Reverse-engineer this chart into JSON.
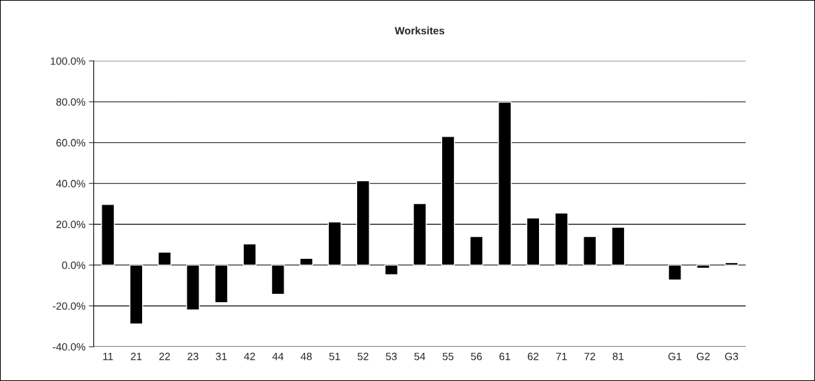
{
  "chart_data": {
    "type": "bar",
    "title": "Worksites",
    "categories": [
      "11",
      "21",
      "22",
      "23",
      "31",
      "42",
      "44",
      "48",
      "51",
      "52",
      "53",
      "54",
      "55",
      "56",
      "61",
      "62",
      "71",
      "72",
      "81",
      null,
      "G1",
      "G2",
      "G3"
    ],
    "values": [
      29.7,
      -28.9,
      6.3,
      -22.0,
      -18.4,
      10.4,
      -14.3,
      3.3,
      21.1,
      41.3,
      -4.7,
      30.1,
      63.0,
      14.0,
      79.8,
      23.1,
      25.5,
      14.0,
      18.5,
      null,
      -7.3,
      -1.5,
      1.2
    ],
    "color": "#000000",
    "ylim": [
      -40,
      100
    ],
    "yticks": [
      {
        "value": -40,
        "label": "-40.0%"
      },
      {
        "value": -20,
        "label": "-20.0%"
      },
      {
        "value": 0,
        "label": "0.0%"
      },
      {
        "value": 20,
        "label": "20.0%"
      },
      {
        "value": 40,
        "label": "40.0%"
      },
      {
        "value": 60,
        "label": "60.0%"
      },
      {
        "value": 80,
        "label": "80.0%"
      },
      {
        "value": 100,
        "label": "100.0%"
      }
    ],
    "grid": "y"
  }
}
